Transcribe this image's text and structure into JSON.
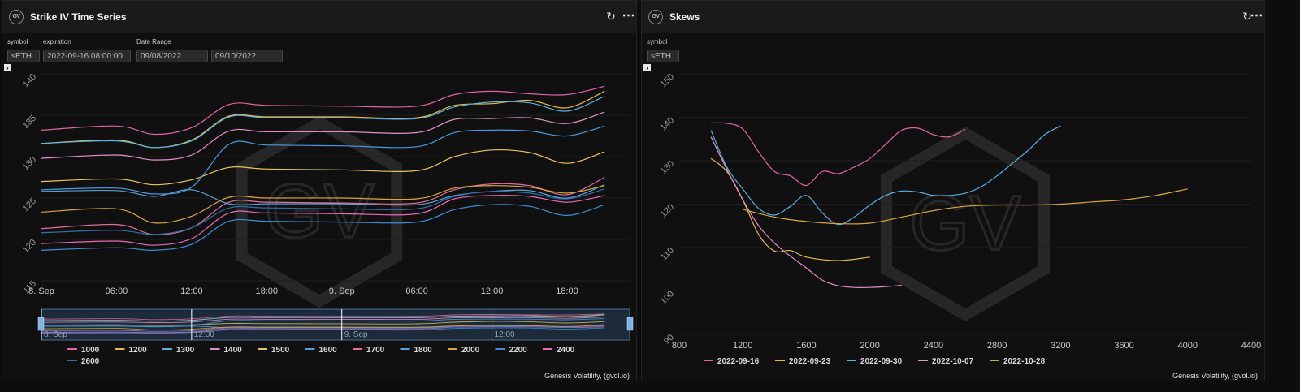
{
  "left_panel": {
    "title": "Strike IV Time Series",
    "logo_text": "GV",
    "filters": {
      "symbol_label": "symbol",
      "symbol_value": "sETH",
      "expiration_label": "expiration",
      "expiration_value": "2022-09-16 08:00:00",
      "date_range_label": "Date Range",
      "date_from": "09/08/2022",
      "date_to": "09/10/2022"
    },
    "credit": "Genesis Volatility, (gvol.io)"
  },
  "right_panel": {
    "title": "Skews",
    "logo_text": "GV",
    "filters": {
      "symbol_label": "symbol",
      "symbol_value": "sETH"
    },
    "credit": "Genesis Volatility, (gvol.io)"
  },
  "icons": {
    "refresh": "refresh-icon",
    "menu": "more-horizontal-icon",
    "expand": "expand-arrow-icon"
  },
  "watermark_text": "GV",
  "chart_data": [
    {
      "type": "line",
      "title": "",
      "x_axis": "time",
      "x_ticks": [
        "8. Sep",
        "06:00",
        "12:00",
        "18:00",
        "9. Sep",
        "06:00",
        "12:00",
        "18:00"
      ],
      "xlim": [
        "2022-09-08 00:00",
        "2022-09-09 23:00"
      ],
      "ylim": [
        115,
        140
      ],
      "y_ticks": [
        115,
        120,
        125,
        130,
        135,
        140
      ],
      "grid": true,
      "legend_position": "bottom",
      "navigator_labels": [
        "8. Sep",
        "12:00",
        "9. Sep",
        "12:00"
      ],
      "times": [
        "2022-09-08 00:00",
        "2022-09-08 06:00",
        "2022-09-08 09:00",
        "2022-09-08 12:00",
        "2022-09-08 15:00",
        "2022-09-08 18:00",
        "2022-09-09 00:00",
        "2022-09-09 06:00",
        "2022-09-09 09:00",
        "2022-09-09 12:00",
        "2022-09-09 15:00",
        "2022-09-09 18:00",
        "2022-09-09 21:00"
      ],
      "series": [
        {
          "name": "1000",
          "color": "#e064a6",
          "values": [
            133.2,
            133.7,
            132.7,
            133.5,
            136.3,
            136.2,
            136.1,
            136.1,
            137.5,
            137.9,
            137.6,
            137.5,
            138.5
          ]
        },
        {
          "name": "1200",
          "color": "#e8b94a",
          "values": [
            131.6,
            132.0,
            131.1,
            132.0,
            134.9,
            134.8,
            134.8,
            134.7,
            136.2,
            136.4,
            136.8,
            135.9,
            137.9
          ]
        },
        {
          "name": "1300",
          "color": "#5ab0e0",
          "values": [
            131.6,
            131.9,
            131.1,
            131.9,
            134.8,
            134.7,
            134.7,
            134.6,
            136.0,
            136.6,
            136.5,
            135.5,
            137.3
          ]
        },
        {
          "name": "1400",
          "color": "#e48fc6",
          "values": [
            129.8,
            130.2,
            129.6,
            130.2,
            133.1,
            133.0,
            133.0,
            132.9,
            134.5,
            134.6,
            134.7,
            134.0,
            135.4
          ]
        },
        {
          "name": "1500",
          "color": "#e9c35c",
          "values": [
            127.0,
            127.3,
            126.6,
            127.2,
            128.7,
            128.5,
            128.4,
            128.3,
            130.0,
            130.8,
            130.5,
            129.2,
            130.6
          ]
        },
        {
          "name": "1600",
          "color": "#4a9be0",
          "values": [
            126.0,
            126.2,
            125.5,
            126.3,
            131.5,
            131.4,
            131.3,
            131.2,
            132.9,
            133.2,
            133.1,
            132.5,
            133.7
          ]
        },
        {
          "name": "1700",
          "color": "#e0709a",
          "values": [
            121.3,
            121.8,
            120.6,
            121.4,
            124.5,
            124.5,
            124.4,
            124.4,
            126.0,
            126.7,
            126.5,
            125.4,
            127.5
          ]
        },
        {
          "name": "1800",
          "color": "#5c9fd6",
          "values": [
            125.8,
            125.9,
            125.2,
            126.0,
            124.3,
            124.3,
            124.3,
            124.2,
            125.3,
            125.8,
            125.9,
            125.0,
            126.6
          ]
        },
        {
          "name": "2000",
          "color": "#d9a43c",
          "values": [
            123.3,
            123.7,
            122.0,
            122.8,
            125.1,
            125.0,
            125.0,
            124.9,
            126.2,
            126.5,
            126.3,
            125.6,
            126.5
          ]
        },
        {
          "name": "2200",
          "color": "#3c8fd9",
          "values": [
            118.7,
            119.0,
            118.7,
            119.4,
            122.2,
            122.2,
            122.1,
            122.1,
            123.6,
            124.2,
            124.0,
            122.9,
            124.2
          ]
        },
        {
          "name": "2400",
          "color": "#e86ab8",
          "values": [
            119.5,
            119.8,
            119.3,
            120.1,
            123.2,
            123.2,
            123.1,
            123.1,
            124.9,
            125.3,
            125.2,
            124.5,
            125.3
          ]
        },
        {
          "name": "2600",
          "color": "#2f6fa8",
          "values": [
            120.8,
            121.1,
            120.6,
            121.4,
            123.8,
            123.8,
            123.7,
            123.7,
            125.2,
            125.8,
            125.6,
            124.9,
            126.1
          ]
        }
      ]
    },
    {
      "type": "line",
      "title": "",
      "xlim": [
        800,
        4400
      ],
      "x_ticks": [
        800,
        1200,
        1600,
        2000,
        2400,
        2800,
        3200,
        3600,
        4000,
        4400
      ],
      "ylim": [
        90,
        150
      ],
      "y_ticks": [
        90,
        100,
        110,
        120,
        130,
        140,
        150
      ],
      "grid": true,
      "legend_position": "bottom",
      "series": [
        {
          "name": "2022-09-16",
          "color": "#e064a6",
          "x": [
            1000,
            1100,
            1200,
            1300,
            1400,
            1500,
            1600,
            1700,
            1800,
            1900,
            2000,
            2100,
            2200,
            2300,
            2400,
            2500,
            2600
          ],
          "y": [
            138.7,
            138.6,
            137.3,
            132.0,
            127.5,
            126.5,
            124.3,
            127.5,
            127.0,
            128.5,
            130.5,
            133.8,
            137.0,
            137.5,
            136.0,
            135.5,
            137.2
          ]
        },
        {
          "name": "2022-09-23",
          "color": "#e8b94a",
          "x": [
            1000,
            1100,
            1200,
            1300,
            1400,
            1500,
            1600,
            1800,
            2000
          ],
          "y": [
            130.5,
            127.5,
            121.0,
            113.0,
            109.2,
            109.3,
            107.8,
            107.0,
            107.8
          ]
        },
        {
          "name": "2022-09-30",
          "color": "#5ab0e0",
          "x": [
            1000,
            1100,
            1200,
            1300,
            1400,
            1500,
            1600,
            1700,
            1800,
            1900,
            2000,
            2100,
            2200,
            2300,
            2400,
            2500,
            2600,
            2700,
            2800,
            2900,
            3000,
            3100,
            3200
          ],
          "y": [
            137.0,
            128.5,
            123.5,
            119.0,
            117.5,
            119.5,
            122.0,
            118.0,
            115.3,
            117.0,
            119.8,
            122.0,
            123.0,
            122.8,
            122.0,
            122.0,
            122.5,
            124.0,
            126.5,
            129.5,
            132.5,
            136.0,
            138.0
          ]
        },
        {
          "name": "2022-10-07",
          "color": "#e48fc6",
          "x": [
            1000,
            1100,
            1200,
            1300,
            1400,
            1500,
            1600,
            1700,
            1800,
            1900,
            2000,
            2100,
            2200
          ],
          "y": [
            135.5,
            128.0,
            121.0,
            115.0,
            111.0,
            108.0,
            105.3,
            102.5,
            101.2,
            100.8,
            100.8,
            101.0,
            101.3
          ]
        },
        {
          "name": "2022-10-28",
          "color": "#d9a43c",
          "x": [
            1200,
            1400,
            1600,
            1800,
            2000,
            2200,
            2400,
            2600,
            2800,
            3000,
            3200,
            3400,
            3600,
            3800,
            4000
          ],
          "y": [
            118.8,
            117.0,
            116.0,
            115.5,
            115.6,
            117.0,
            118.5,
            119.5,
            119.8,
            119.8,
            120.0,
            120.5,
            121.0,
            122.0,
            123.5
          ]
        }
      ]
    }
  ]
}
